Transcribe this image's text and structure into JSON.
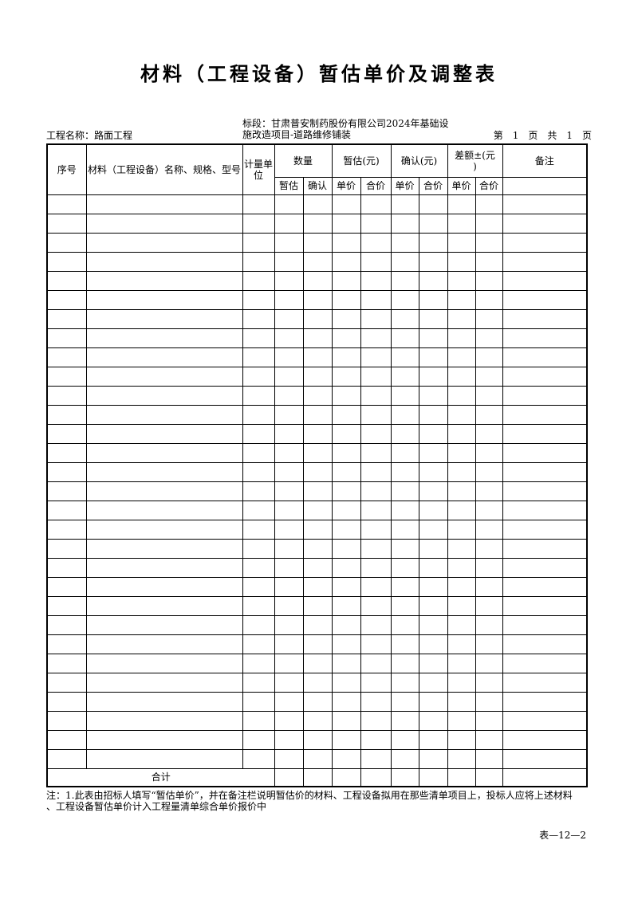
{
  "page": {
    "title": "材料（工程设备）暂估单价及调整表",
    "project_label": "工程名称：路面工程",
    "section_line1": "标段：甘肃普安制药股份有限公司2024年基础设",
    "section_line2": "施改造项目-道路维修铺装",
    "page_info": "第　1　页　共　1　页",
    "note_line1": "注：1.此表由招标人填写“暂估单价”，并在备注栏说明暂估价的材料、工程设备拟用在那些清单项目上，投标人应将上述材料",
    "note_line2": "、工程设备暂估单价计入工程量清单综合单价报价中",
    "footer_code": "表—12—2"
  },
  "table": {
    "headers": {
      "serial": "序号",
      "name": "材料（工程设备）名称、规格、型号",
      "unit": "计量单位",
      "quantity_group": "数量",
      "provisional_group": "暂估(元)",
      "confirmed_group": "确认(元)",
      "difference_group": "差额±(元\n)",
      "remark": "备注"
    },
    "subheaders": [
      "暂估",
      "确认",
      "单价",
      "合价",
      "单价",
      "合价",
      "单价",
      "合价"
    ],
    "empty_row_count": 30,
    "columns_per_row": 12,
    "total_label": "合计"
  },
  "colors": {
    "ink": "#000000",
    "paper": "#ffffff"
  }
}
